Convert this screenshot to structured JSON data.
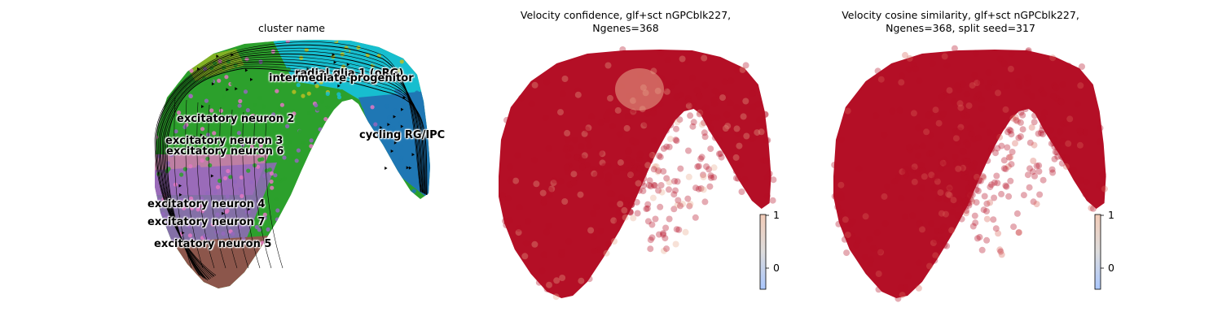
{
  "chart_data": [
    {
      "type": "scatter",
      "title": "cluster name",
      "xlabel": "",
      "ylabel": "",
      "grid": false,
      "legend": "on data",
      "overlay": "velocity streamlines with arrows",
      "clusters": [
        {
          "name": "radial glia 1 (oRG)",
          "color": "#17becf"
        },
        {
          "name": "intermediate progenitor",
          "color": "#bcbd22"
        },
        {
          "name": "cycling RG/IPC",
          "color": "#1f77b4"
        },
        {
          "name": "excitatory neuron 2",
          "color": "#2ca02c"
        },
        {
          "name": "excitatory neuron 3",
          "color": "#e377c2"
        },
        {
          "name": "excitatory neuron 6",
          "color": "#7f7f7f"
        },
        {
          "name": "excitatory neuron 4",
          "color": "#9467bd"
        },
        {
          "name": "excitatory neuron 7",
          "color": "#ff7f0e"
        },
        {
          "name": "excitatory neuron 5",
          "color": "#8c564b"
        }
      ]
    },
    {
      "type": "scatter",
      "title_line1": "Velocity confidence, glf+sct nGPCblk227,",
      "title_line2": "Ngenes=368",
      "colormap": "coolwarm",
      "colorbar_ticks": [
        "1",
        "0"
      ],
      "dominant_color": "#b40f26",
      "highlight_color": "#e8a88d"
    },
    {
      "type": "scatter",
      "title_line1": "Velocity cosine similarity, glf+sct nGPCblk227,",
      "title_line2": "Ngenes=368, split seed=317",
      "colormap": "coolwarm",
      "colorbar_ticks": [
        "1",
        "0"
      ],
      "dominant_color": "#b40f26",
      "highlight_color": "#d9635a"
    }
  ]
}
